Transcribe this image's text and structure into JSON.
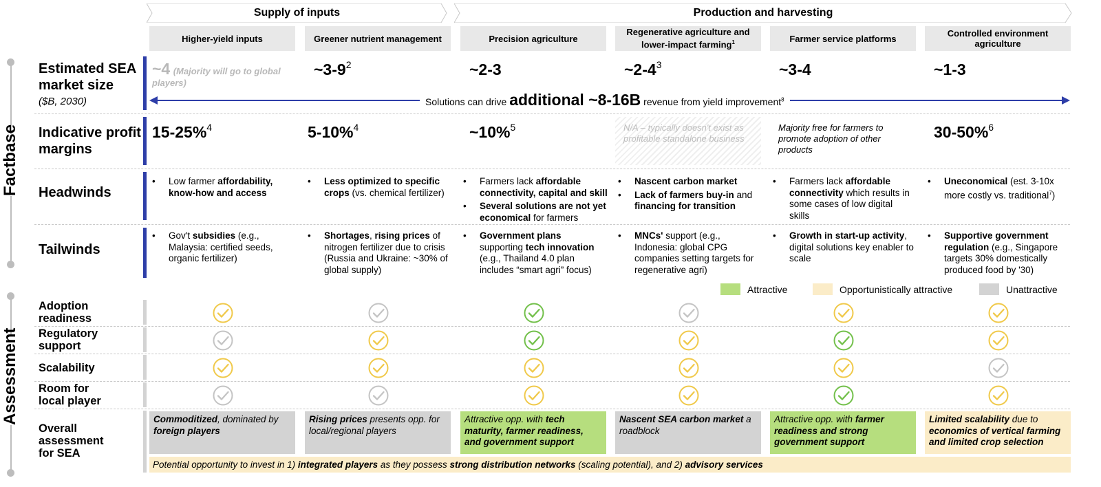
{
  "side_labels": {
    "factbase": "Factbase",
    "assessment": "Assessment"
  },
  "groups": {
    "supply": "Supply of inputs",
    "production": "Production and harvesting"
  },
  "columns": [
    "Higher-yield inputs",
    "Greener nutrient management",
    "Precision agriculture",
    "Regenerative agriculture and lower-impact farming",
    "Farmer service platforms",
    "Controlled environment agriculture"
  ],
  "columns_sup": {
    "regen": "1"
  },
  "rows": {
    "market_label": "Estimated SEA market size",
    "market_sub": "($B, 2030)",
    "margin_label": "Indicative profit margins",
    "headwinds_label": "Headwinds",
    "tailwinds_label": "Tailwinds"
  },
  "market": {
    "c0_value": "~4",
    "c0_note": "(Majority will go to global players)",
    "c1_value": "~3-9",
    "c1_sup": "2",
    "c2_value": "~2-3",
    "c3_value": "~2-4",
    "c3_sup": "3",
    "c4_value": "~3-4",
    "c5_value": "~1-3"
  },
  "banner": {
    "pre": "Solutions can drive ",
    "big": "additional ~8-16B",
    "post": " revenue from yield improvement",
    "sup": "8"
  },
  "margins": {
    "c0_value": "15-25%",
    "c0_sup": "4",
    "c1_value": "5-10%",
    "c1_sup": "4",
    "c2_value": "~10%",
    "c2_sup": "5",
    "c3_note": "N/A – typically doesn't exist as profitable standalone business",
    "c4_note": "Majority free for farmers to promote adoption of other products",
    "c5_value": "30-50%",
    "c5_sup": "6"
  },
  "headwinds": {
    "c0": {
      "a": "Low farmer ",
      "b": "affordability, know-how and access"
    },
    "c1": {
      "a": "Less optimized to specific crops",
      "b": " (vs. chemical fertilizer)"
    },
    "c2": {
      "a": "Farmers lack ",
      "b": "affordable connectivity, capital and skill",
      "c": "Several solutions are not yet economical",
      "d": " for farmers"
    },
    "c3": {
      "a": "Nascent carbon market",
      "b": "Lack of farmers buy-in",
      "c": " and ",
      "d": "financing for transition"
    },
    "c4": {
      "a": "Farmers lack ",
      "b": "affordable connectivity",
      "c": " which results in some cases of low digital skills"
    },
    "c5": {
      "a": "Uneconomical",
      "b": " (est. 3-10x more costly vs. traditional",
      "sup": "7",
      "c": ")"
    }
  },
  "tailwinds": {
    "c0": {
      "a": "Gov't ",
      "b": "subsidies",
      "c": " (e.g., Malaysia: certified seeds, organic fertilizer)"
    },
    "c1": {
      "a": "Shortages",
      "b": ", ",
      "c": "rising prices",
      "d": " of nitrogen fertilizer due to crisis (Russia and Ukraine: ~30% of global supply)"
    },
    "c2": {
      "a": "Government plans",
      "b": " supporting ",
      "c": "tech innovation",
      "d": " (e.g., Thailand 4.0 plan includes “smart agri” focus)"
    },
    "c3": {
      "a": "MNCs'",
      "b": " support (e.g., Indonesia: global CPG companies setting targets for regenerative agri)"
    },
    "c4": {
      "a": "Growth in start-up activity",
      "b": ", digital solutions key enabler to scale"
    },
    "c5": {
      "a": "Supportive government regulation",
      "b": " (e.g., Singapore targets 30% domestically produced food by '30)"
    }
  },
  "legend": {
    "attractive": "Attractive",
    "opportunistic": "Opportunistically attractive",
    "unattractive": "Unattractive"
  },
  "legend_colors": {
    "attractive": "#b6de7e",
    "opportunistic": "#fbecc8",
    "unattractive": "#d3d3d3"
  },
  "check_colors": {
    "yellow": "#f0c94a",
    "green": "#72c04a",
    "grey": "#c4c4c4"
  },
  "assessment_labels": [
    "Adoption readiness",
    "Regulatory support",
    "Scalability",
    "Room for local player",
    "Overall assessment for SEA"
  ],
  "assessment": [
    [
      "yellow",
      "grey",
      "green",
      "grey",
      "yellow",
      "yellow"
    ],
    [
      "grey",
      "yellow",
      "green",
      "yellow",
      "green",
      "yellow"
    ],
    [
      "yellow",
      "yellow",
      "yellow",
      "yellow",
      "yellow",
      "grey"
    ],
    [
      "grey",
      "grey",
      "yellow",
      "yellow",
      "green",
      "yellow"
    ]
  ],
  "overall": {
    "c0": {
      "a": "Commoditized",
      "b": ", dominated by ",
      "c": "foreign players"
    },
    "c1": {
      "a": "Rising prices",
      "b": " presents opp. for local/regional players"
    },
    "c2": {
      "a": "Attractive opp. with ",
      "b": "tech maturity, farmer readiness, and government support"
    },
    "c3": {
      "a": "Nascent SEA carbon market",
      "b": " a roadblock"
    },
    "c4": {
      "a": "Attractive opp. with ",
      "b": "farmer readiness and strong government support"
    },
    "c5": {
      "a": "Limited scalability",
      "b": " due to ",
      "c": "economics of vertical farming and limited crop selection"
    }
  },
  "bottom": {
    "a": "Potential opportunity to invest in 1) ",
    "b": "integrated players",
    "c": " as they possess ",
    "d": "strong distribution networks",
    "e": " (scaling potential), and 2) ",
    "f": "advisory services"
  }
}
